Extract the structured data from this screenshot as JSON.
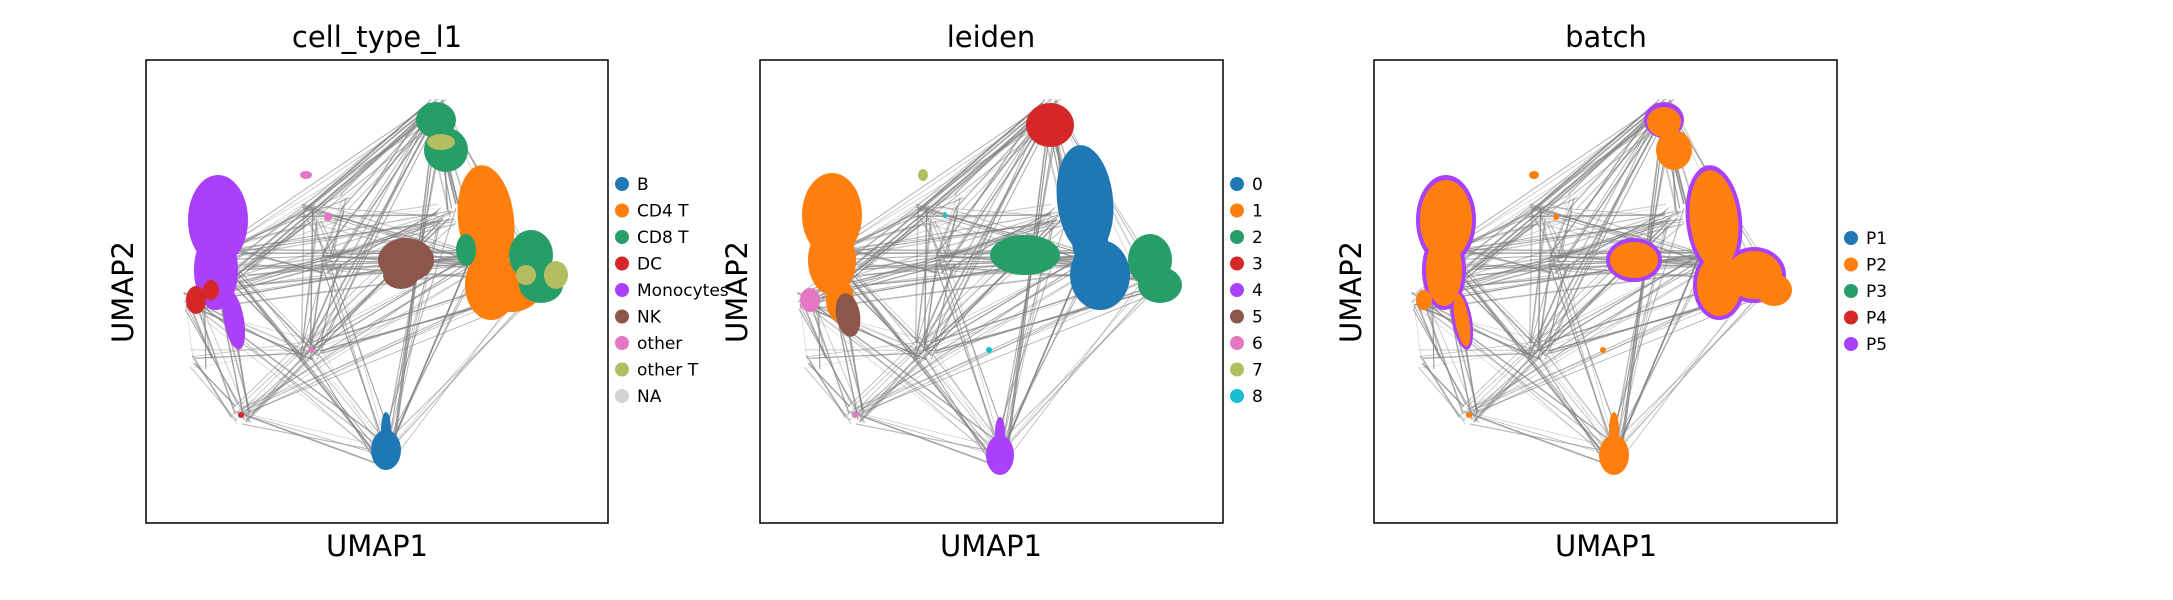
{
  "chart_data": [
    {
      "type": "scatter",
      "title": "cell_type_l1",
      "xlabel": "UMAP1",
      "ylabel": "UMAP2",
      "grid": false,
      "legend_placement": "right",
      "legend": [
        {
          "label": "B",
          "color": "#1f77b4"
        },
        {
          "label": "CD4 T",
          "color": "#ff7f0e"
        },
        {
          "label": "CD8 T",
          "color": "#279e68"
        },
        {
          "label": "DC",
          "color": "#d62728"
        },
        {
          "label": "Monocytes",
          "color": "#aa40fc"
        },
        {
          "label": "NK",
          "color": "#8c564b"
        },
        {
          "label": "other",
          "color": "#e377c2"
        },
        {
          "label": "other T",
          "color": "#b5bd61"
        },
        {
          "label": "NA",
          "color": "#d3d3d3"
        }
      ]
    },
    {
      "type": "scatter",
      "title": "leiden",
      "xlabel": "UMAP1",
      "ylabel": "UMAP2",
      "grid": false,
      "legend_placement": "right",
      "legend": [
        {
          "label": "0",
          "color": "#1f77b4"
        },
        {
          "label": "1",
          "color": "#ff7f0e"
        },
        {
          "label": "2",
          "color": "#279e68"
        },
        {
          "label": "3",
          "color": "#d62728"
        },
        {
          "label": "4",
          "color": "#aa40fc"
        },
        {
          "label": "5",
          "color": "#8c564b"
        },
        {
          "label": "6",
          "color": "#e377c2"
        },
        {
          "label": "7",
          "color": "#b5bd61"
        },
        {
          "label": "8",
          "color": "#17becf"
        }
      ]
    },
    {
      "type": "scatter",
      "title": "batch",
      "xlabel": "UMAP1",
      "ylabel": "UMAP2",
      "grid": false,
      "legend_placement": "right",
      "legend": [
        {
          "label": "P1",
          "color": "#1f77b4"
        },
        {
          "label": "P2",
          "color": "#ff7f0e"
        },
        {
          "label": "P3",
          "color": "#279e68"
        },
        {
          "label": "P4",
          "color": "#d62728"
        },
        {
          "label": "P5",
          "color": "#aa40fc"
        }
      ]
    }
  ]
}
